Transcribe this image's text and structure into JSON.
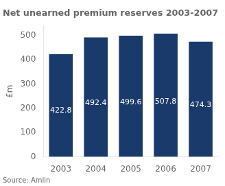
{
  "chart_data": {
    "type": "bar",
    "title": "Net unearned premium reserves 2003-2007",
    "categories": [
      "2003",
      "2004",
      "2005",
      "2006",
      "2007"
    ],
    "values": [
      422.8,
      492.4,
      499.6,
      507.8,
      474.3
    ],
    "color": "#1a3a6b",
    "ylabel": "£m",
    "ylim": [
      0,
      540
    ],
    "yticks": [
      0,
      100,
      200,
      300,
      400,
      500
    ],
    "grid": false,
    "data_labels": true,
    "annotations": [
      "Source: Amlin"
    ]
  }
}
